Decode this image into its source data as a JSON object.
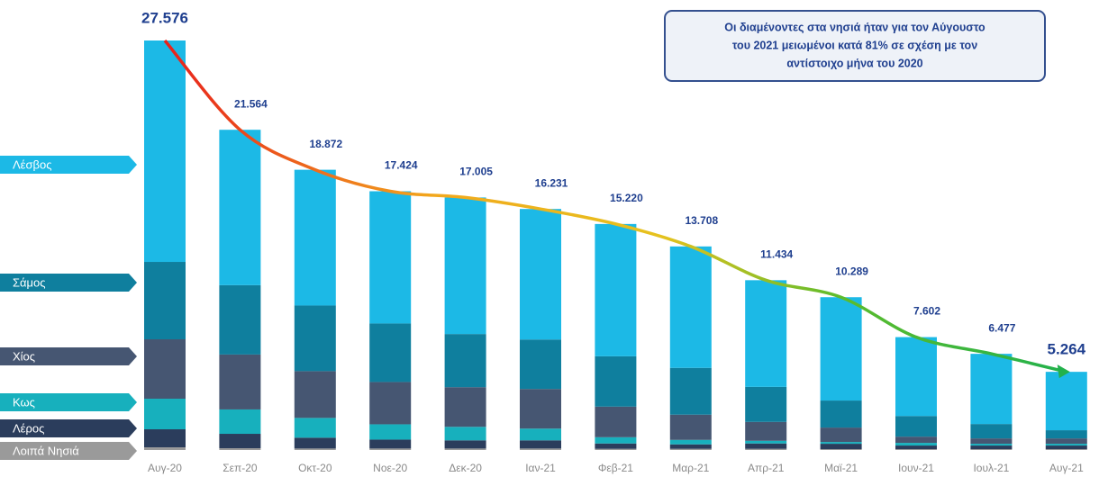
{
  "chart_data": {
    "type": "stacked-bar",
    "annotation": [
      "Οι διαμένοντες στα νησιά ήταν για τον Αύγουστο",
      "του 2021 μειωμένοι κατά 81% σε σχέση με τον",
      "αντίστοιχο μήνα του 2020"
    ],
    "categories": [
      "Αυγ-20",
      "Σεπ-20",
      "Οκτ-20",
      "Νοε-20",
      "Δεκ-20",
      "Ιαν-21",
      "Φεβ-21",
      "Μαρ-21",
      "Απρ-21",
      "Μαϊ-21",
      "Ιουν-21",
      "Ιουλ-21",
      "Αυγ-21"
    ],
    "series": [
      {
        "name": "Λοιπά Νησιά",
        "color": "#9a9a9a",
        "values": [
          182,
          120,
          100,
          100,
          100,
          100,
          80,
          80,
          80,
          60,
          60,
          60,
          60
        ]
      },
      {
        "name": "Λέρος",
        "color": "#2b3d5c",
        "values": [
          1212,
          970,
          730,
          600,
          550,
          550,
          360,
          300,
          360,
          360,
          240,
          240,
          240
        ]
      },
      {
        "name": "Κως",
        "color": "#17b0bd",
        "values": [
          2060,
          1640,
          1330,
          1030,
          910,
          790,
          420,
          300,
          180,
          120,
          180,
          120,
          120
        ]
      },
      {
        "name": "Χίος",
        "color": "#465672",
        "values": [
          4000,
          3700,
          3150,
          2850,
          2670,
          2670,
          2060,
          1700,
          1270,
          970,
          420,
          360,
          360
        ]
      },
      {
        "name": "Σάμος",
        "color": "#0f7f9e",
        "values": [
          5212,
          4670,
          4420,
          3940,
          3580,
          3330,
          3390,
          3150,
          2360,
          1820,
          1390,
          970,
          550
        ]
      },
      {
        "name": "Λέσβος",
        "color": "#1cb9e6",
        "values": [
          14910,
          10464,
          9142,
          8904,
          9195,
          8791,
          8910,
          8178,
          7184,
          6959,
          5312,
          4727,
          3934
        ]
      }
    ],
    "totals": {
      "values": [
        27576,
        21564,
        18872,
        17424,
        17005,
        16231,
        15220,
        13708,
        11434,
        10289,
        7602,
        6477,
        5264
      ],
      "value_labels": [
        "27.576",
        "21.564",
        "18.872",
        "17.424",
        "17.005",
        "16.231",
        "15.220",
        "13.708",
        "11.434",
        "10.289",
        "7.602",
        "6.477",
        "5.264"
      ]
    }
  }
}
